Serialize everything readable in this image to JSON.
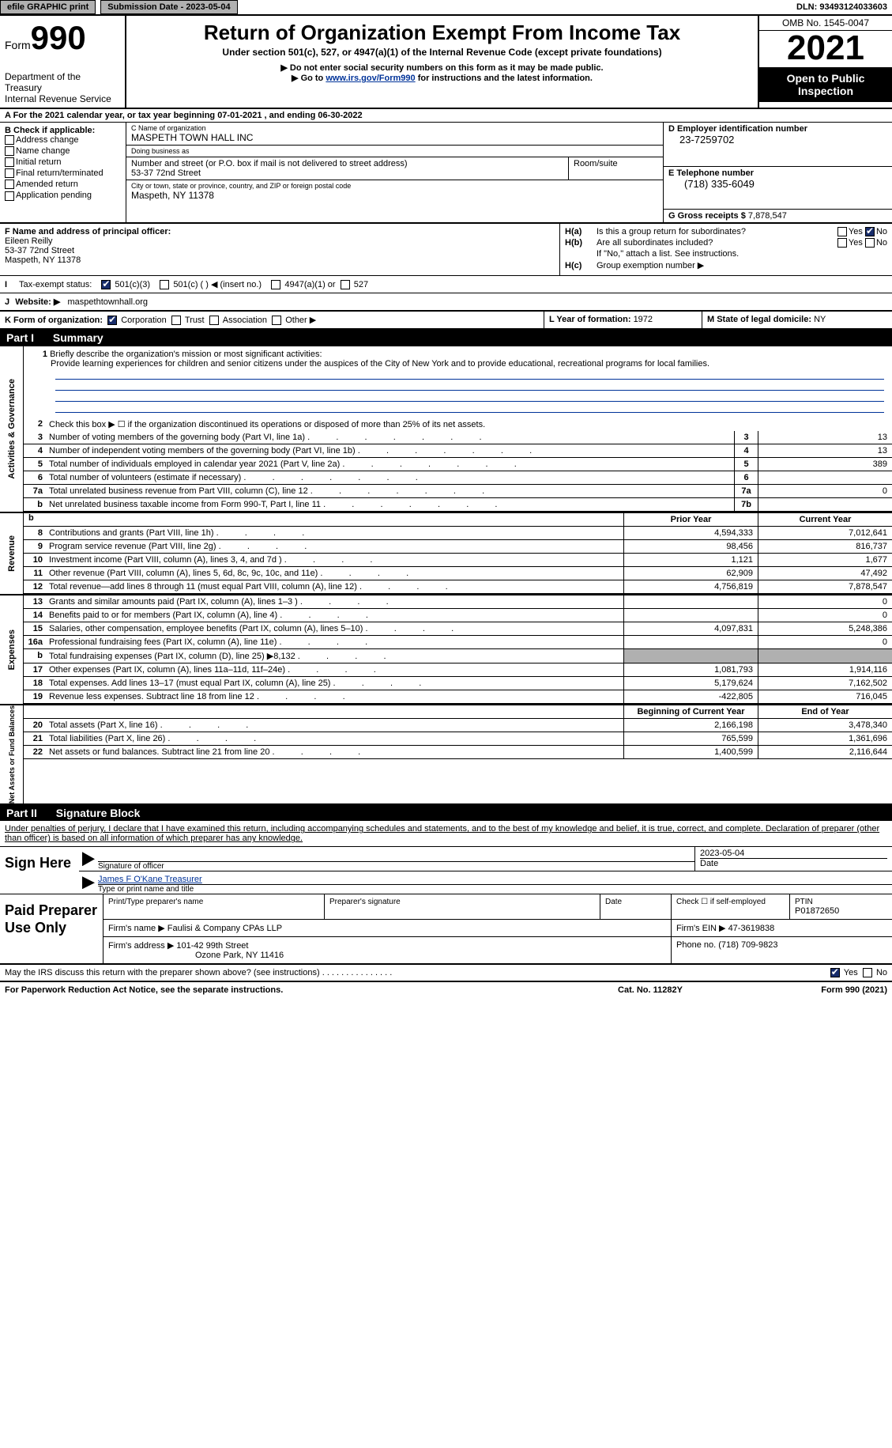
{
  "topbar": {
    "efile_label": "efile GRAPHIC print",
    "submission_label": "Submission Date - 2023-05-04",
    "dln": "DLN: 93493124033603"
  },
  "header": {
    "form_word": "Form",
    "form_num": "990",
    "dept": "Department of the Treasury",
    "irs": "Internal Revenue Service",
    "title": "Return of Organization Exempt From Income Tax",
    "sub": "Under section 501(c), 527, or 4947(a)(1) of the Internal Revenue Code (except private foundations)",
    "inst1": "▶ Do not enter social security numbers on this form as it may be made public.",
    "inst2_pre": "▶ Go to ",
    "inst2_link": "www.irs.gov/Form990",
    "inst2_post": " for instructions and the latest information.",
    "omb": "OMB No. 1545-0047",
    "year": "2021",
    "open_pub": "Open to Public Inspection"
  },
  "section_a": "A  For the 2021 calendar year, or tax year beginning 07-01-2021    , and ending 06-30-2022",
  "id": {
    "b_label": "B Check if applicable:",
    "addr_change": "Address change",
    "name_change": "Name change",
    "initial": "Initial return",
    "final": "Final return/terminated",
    "amended": "Amended return",
    "app_pending": "Application pending",
    "c_label": "C Name of organization",
    "org_name": "MASPETH TOWN HALL INC",
    "dba_label": "Doing business as",
    "dba": "",
    "street_label": "Number and street (or P.O. box if mail is not delivered to street address)",
    "street": "53-37 72nd Street",
    "room_label": "Room/suite",
    "room": "",
    "city_label": "City or town, state or province, country, and ZIP or foreign postal code",
    "city": "Maspeth, NY  11378",
    "d_label": "D Employer identification number",
    "ein": "23-7259702",
    "e_label": "E Telephone number",
    "phone": "(718) 335-6049",
    "g_label": "G Gross receipts $ ",
    "gross": "7,878,547"
  },
  "fh": {
    "f_label": "F  Name and address of principal officer:",
    "officer_name": "Eileen Reilly",
    "officer_street": "53-37 72nd Street",
    "officer_city": "Maspeth, NY  11378",
    "ha_label": "H(a)",
    "ha_txt": "Is this a group return for subordinates?",
    "hb_label": "H(b)",
    "hb_txt": "Are all subordinates included?",
    "hb_note": "If \"No,\" attach a list. See instructions.",
    "hc_label": "H(c)",
    "hc_txt": "Group exemption number ▶",
    "yes": "Yes",
    "no": "No"
  },
  "tax": {
    "i_label": "I",
    "status_label": "Tax-exempt status:",
    "c3": "501(c)(3)",
    "c_other": "501(c) (   ) ◀ (insert no.)",
    "a1": "4947(a)(1) or",
    "s527": "527"
  },
  "j": {
    "label": "J",
    "txt": "Website: ▶",
    "site": "maspethtownhall.org"
  },
  "k": {
    "label": "K Form of organization:",
    "corp": "Corporation",
    "trust": "Trust",
    "assoc": "Association",
    "other": "Other ▶"
  },
  "l": {
    "label": "L Year of formation: ",
    "val": "1972"
  },
  "m": {
    "label": "M State of legal domicile: ",
    "val": "NY"
  },
  "part1": {
    "hdr": "Part I",
    "title": "Summary",
    "q1_label": "1",
    "q1": "Briefly describe the organization's mission or most significant activities:",
    "mission": "Provide learning experiences for children and senior citizens under the auspices of the City of New York and to provide educational, recreational programs for local families.",
    "q2_label": "2",
    "q2": "Check this box ▶ ☐  if the organization discontinued its operations or disposed of more than 25% of its net assets.",
    "lines_ag": [
      {
        "n": "3",
        "t": "Number of voting members of the governing body (Part VI, line 1a)",
        "box": "3",
        "v": "13"
      },
      {
        "n": "4",
        "t": "Number of independent voting members of the governing body (Part VI, line 1b)",
        "box": "4",
        "v": "13"
      },
      {
        "n": "5",
        "t": "Total number of individuals employed in calendar year 2021 (Part V, line 2a)",
        "box": "5",
        "v": "389"
      },
      {
        "n": "6",
        "t": "Total number of volunteers (estimate if necessary)",
        "box": "6",
        "v": ""
      },
      {
        "n": "7a",
        "t": "Total unrelated business revenue from Part VIII, column (C), line 12",
        "box": "7a",
        "v": "0"
      },
      {
        "n": "b",
        "t": "Net unrelated business taxable income from Form 990-T, Part I, line 11",
        "box": "7b",
        "v": ""
      }
    ],
    "col_prior": "Prior Year",
    "col_current": "Current Year",
    "rev": [
      {
        "n": "8",
        "t": "Contributions and grants (Part VIII, line 1h)",
        "p": "4,594,333",
        "c": "7,012,641"
      },
      {
        "n": "9",
        "t": "Program service revenue (Part VIII, line 2g)",
        "p": "98,456",
        "c": "816,737"
      },
      {
        "n": "10",
        "t": "Investment income (Part VIII, column (A), lines 3, 4, and 7d )",
        "p": "1,121",
        "c": "1,677"
      },
      {
        "n": "11",
        "t": "Other revenue (Part VIII, column (A), lines 5, 6d, 8c, 9c, 10c, and 11e)",
        "p": "62,909",
        "c": "47,492"
      },
      {
        "n": "12",
        "t": "Total revenue—add lines 8 through 11 (must equal Part VIII, column (A), line 12)",
        "p": "4,756,819",
        "c": "7,878,547"
      }
    ],
    "exp": [
      {
        "n": "13",
        "t": "Grants and similar amounts paid (Part IX, column (A), lines 1–3 )",
        "p": "",
        "c": "0"
      },
      {
        "n": "14",
        "t": "Benefits paid to or for members (Part IX, column (A), line 4)",
        "p": "",
        "c": "0"
      },
      {
        "n": "15",
        "t": "Salaries, other compensation, employee benefits (Part IX, column (A), lines 5–10)",
        "p": "4,097,831",
        "c": "5,248,386"
      },
      {
        "n": "16a",
        "t": "Professional fundraising fees (Part IX, column (A), line 11e)",
        "p": "",
        "c": "0"
      },
      {
        "n": "b",
        "t": "Total fundraising expenses (Part IX, column (D), line 25) ▶8,132",
        "p": "SHADE",
        "c": "SHADE"
      },
      {
        "n": "17",
        "t": "Other expenses (Part IX, column (A), lines 11a–11d, 11f–24e)",
        "p": "1,081,793",
        "c": "1,914,116"
      },
      {
        "n": "18",
        "t": "Total expenses. Add lines 13–17 (must equal Part IX, column (A), line 25)",
        "p": "5,179,624",
        "c": "7,162,502"
      },
      {
        "n": "19",
        "t": "Revenue less expenses. Subtract line 18 from line 12",
        "p": "-422,805",
        "c": "716,045"
      }
    ],
    "col_beg": "Beginning of Current Year",
    "col_end": "End of Year",
    "net": [
      {
        "n": "20",
        "t": "Total assets (Part X, line 16)",
        "p": "2,166,198",
        "c": "3,478,340"
      },
      {
        "n": "21",
        "t": "Total liabilities (Part X, line 26)",
        "p": "765,599",
        "c": "1,361,696"
      },
      {
        "n": "22",
        "t": "Net assets or fund balances. Subtract line 21 from line 20",
        "p": "1,400,599",
        "c": "2,116,644"
      }
    ],
    "vlabels": {
      "ag": "Activities & Governance",
      "rev": "Revenue",
      "exp": "Expenses",
      "net": "Net Assets or Fund Balances"
    }
  },
  "part2": {
    "hdr": "Part II",
    "title": "Signature Block",
    "intro": "Under penalties of perjury, I declare that I have examined this return, including accompanying schedules and statements, and to the best of my knowledge and belief, it is true, correct, and complete. Declaration of preparer (other than officer) is based on all information of which preparer has any knowledge.",
    "sign_here": "Sign Here",
    "sig_officer_lbl": "Signature of officer",
    "sig_date": "2023-05-04",
    "date_lbl": "Date",
    "officer_name": "James F O'Kane  Treasurer",
    "officer_name_lbl": "Type or print name and title",
    "paid_prep": "Paid Preparer Use Only",
    "print_name_lbl": "Print/Type preparer's name",
    "prep_sig_lbl": "Preparer's signature",
    "check_self": "Check ☐ if self-employed",
    "ptin_lbl": "PTIN",
    "ptin": "P01872650",
    "firm_name_lbl": "Firm's name     ▶ ",
    "firm_name": "Faulisi & Company CPAs LLP",
    "firm_ein_lbl": "Firm's EIN ▶ ",
    "firm_ein": "47-3619838",
    "firm_addr_lbl": "Firm's address ▶ ",
    "firm_addr1": "101-42 99th Street",
    "firm_addr2": "Ozone Park, NY  11416",
    "phone_lbl": "Phone no. ",
    "phone": "(718) 709-9823"
  },
  "discuss": {
    "txt": "May the IRS discuss this return with the preparer shown above? (see instructions)",
    "yes": "Yes",
    "no": "No"
  },
  "footer": {
    "left": "For Paperwork Reduction Act Notice, see the separate instructions.",
    "mid": "Cat. No. 11282Y",
    "right": "Form 990 (2021)"
  }
}
